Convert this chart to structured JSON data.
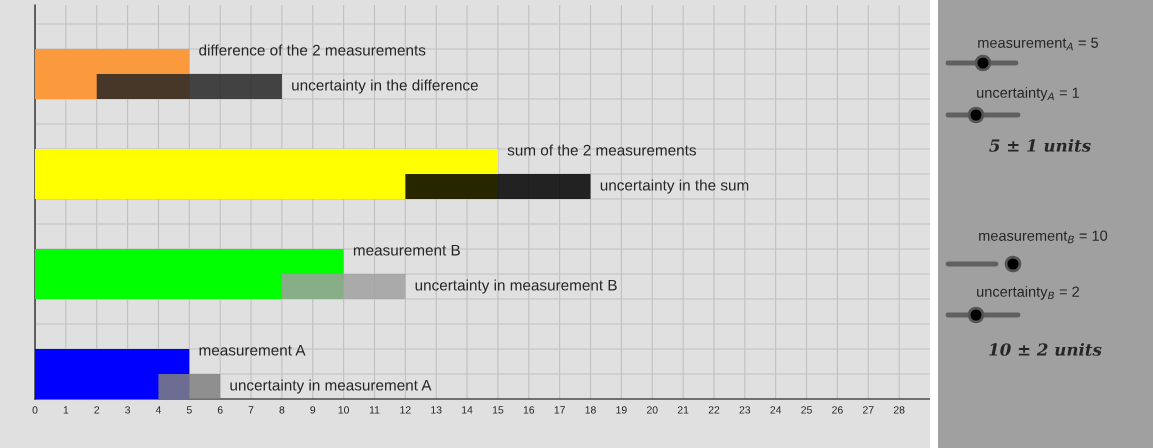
{
  "chart_data": {
    "type": "bar",
    "orientation": "horizontal",
    "categories": [
      "difference of the 2 measurements",
      "uncertainty in the difference",
      "sum of the 2 measurements",
      "uncertainty in the sum",
      "measurement B",
      "uncertainty in measurement B",
      "measurement A",
      "uncertainty in measurement A"
    ],
    "values": [
      5,
      6,
      15,
      6,
      10,
      4,
      5,
      2
    ],
    "base": [
      0,
      2,
      0,
      12,
      0,
      8,
      0,
      4
    ],
    "colors": [
      "#fb9a3c",
      "#262626",
      "#ffff00",
      "#000000",
      "#00ff00",
      "#a0a0a0",
      "#0000ff",
      "#808080"
    ],
    "xlim": [
      0,
      29
    ],
    "xticks": [
      0,
      1,
      2,
      3,
      4,
      5,
      6,
      7,
      8,
      9,
      10,
      11,
      12,
      13,
      14,
      15,
      16,
      17,
      18,
      19,
      20,
      21,
      22,
      23,
      24,
      25,
      26,
      27,
      28
    ],
    "grid": true,
    "annotations": [
      "measurement$_{A}$ = 5",
      "uncertainty$_{A}$ = 1",
      "5 ± 1 units",
      "measurement$_{B}$ = 10",
      "uncertainty$_{B}$ = 2",
      "10 ± 2 units"
    ]
  }
}
